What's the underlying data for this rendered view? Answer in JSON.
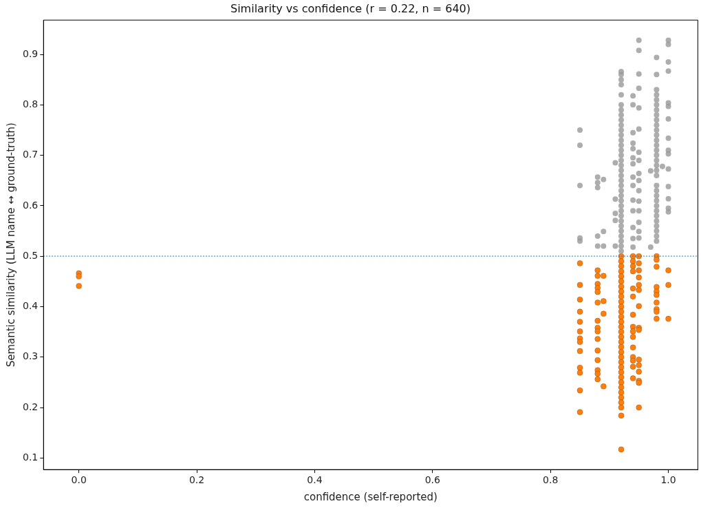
{
  "chart_data": {
    "type": "scatter",
    "title": "Similarity vs confidence (r = 0.22, n = 640)",
    "xlabel": "confidence (self-reported)",
    "ylabel": "Semantic similarity (LLM name ↔ ground-truth)",
    "xlim": [
      -0.06,
      1.05
    ],
    "ylim": [
      0.077,
      0.968
    ],
    "xticks": [
      {
        "value": 0,
        "label": "0.0"
      },
      {
        "value": 0.2,
        "label": "0.2"
      },
      {
        "value": 0.4,
        "label": "0.4"
      },
      {
        "value": 0.6,
        "label": "0.6"
      },
      {
        "value": 0.8,
        "label": "0.8"
      },
      {
        "value": 1,
        "label": "1.0"
      }
    ],
    "yticks": [
      0.1,
      0.2,
      0.3,
      0.4,
      0.5,
      0.6,
      0.7,
      0.8,
      0.9
    ],
    "grid": false,
    "legend": false,
    "marker": "circle",
    "ref_lines": [
      {
        "axis": "y",
        "value": 0.5,
        "color": "#1f77b4",
        "line_style": "dotted"
      }
    ],
    "series": [
      {
        "color": "#999999",
        "x": [
          0.85,
          0.85,
          0.85,
          0.85,
          0.85,
          0.88,
          0.88,
          0.88,
          0.88,
          0.88,
          0.89,
          0.89,
          0.89,
          0.91,
          0.91,
          0.91,
          0.91,
          0.91,
          0.92,
          0.92,
          0.92,
          0.92,
          0.92,
          0.92,
          0.92,
          0.92,
          0.92,
          0.92,
          0.92,
          0.92,
          0.92,
          0.92,
          0.92,
          0.92,
          0.92,
          0.92,
          0.92,
          0.92,
          0.92,
          0.92,
          0.92,
          0.92,
          0.92,
          0.92,
          0.92,
          0.92,
          0.92,
          0.92,
          0.92,
          0.92,
          0.92,
          0.92,
          0.92,
          0.94,
          0.94,
          0.94,
          0.94,
          0.94,
          0.94,
          0.94,
          0.94,
          0.94,
          0.94,
          0.94,
          0.94,
          0.94,
          0.94,
          0.95,
          0.95,
          0.95,
          0.95,
          0.95,
          0.95,
          0.95,
          0.95,
          0.95,
          0.95,
          0.95,
          0.95,
          0.95,
          0.95,
          0.95,
          0.95,
          0.97,
          0.97,
          0.98,
          0.98,
          0.98,
          0.98,
          0.98,
          0.98,
          0.98,
          0.98,
          0.98,
          0.98,
          0.98,
          0.98,
          0.98,
          0.98,
          0.98,
          0.98,
          0.98,
          0.98,
          0.98,
          0.98,
          0.98,
          0.98,
          0.98,
          0.98,
          0.98,
          0.98,
          0.98,
          0.98,
          0.98,
          0.98,
          0.98,
          0.98,
          0.99,
          1,
          1,
          1,
          1,
          1,
          1,
          1,
          1,
          1,
          1,
          1,
          1,
          1,
          1,
          1
        ],
        "values": [
          0.75,
          0.72,
          0.64,
          0.536,
          0.53,
          0.657,
          0.646,
          0.636,
          0.54,
          0.52,
          0.652,
          0.549,
          0.52,
          0.685,
          0.613,
          0.585,
          0.571,
          0.52,
          0.866,
          0.86,
          0.85,
          0.84,
          0.82,
          0.8,
          0.79,
          0.78,
          0.77,
          0.76,
          0.75,
          0.74,
          0.73,
          0.72,
          0.71,
          0.7,
          0.69,
          0.68,
          0.67,
          0.66,
          0.65,
          0.64,
          0.63,
          0.62,
          0.61,
          0.6,
          0.59,
          0.58,
          0.57,
          0.56,
          0.55,
          0.54,
          0.53,
          0.52,
          0.51,
          0.818,
          0.8,
          0.745,
          0.724,
          0.713,
          0.695,
          0.683,
          0.657,
          0.64,
          0.611,
          0.59,
          0.557,
          0.535,
          0.518,
          0.928,
          0.908,
          0.861,
          0.833,
          0.794,
          0.752,
          0.706,
          0.69,
          0.664,
          0.65,
          0.63,
          0.609,
          0.59,
          0.567,
          0.549,
          0.536,
          0.669,
          0.518,
          0.894,
          0.86,
          0.83,
          0.82,
          0.81,
          0.8,
          0.79,
          0.78,
          0.77,
          0.76,
          0.75,
          0.74,
          0.73,
          0.72,
          0.71,
          0.7,
          0.69,
          0.68,
          0.67,
          0.66,
          0.64,
          0.63,
          0.62,
          0.61,
          0.6,
          0.59,
          0.58,
          0.57,
          0.56,
          0.55,
          0.54,
          0.53,
          0.678,
          0.928,
          0.92,
          0.885,
          0.867,
          0.804,
          0.797,
          0.772,
          0.734,
          0.71,
          0.703,
          0.673,
          0.638,
          0.614,
          0.595,
          0.588
        ]
      },
      {
        "color": "#ff7f0e",
        "x": [
          0,
          0,
          0,
          0.85,
          0.85,
          0.85,
          0.85,
          0.85,
          0.85,
          0.85,
          0.85,
          0.85,
          0.85,
          0.85,
          0.85,
          0.85,
          0.88,
          0.88,
          0.88,
          0.88,
          0.88,
          0.88,
          0.88,
          0.88,
          0.88,
          0.88,
          0.88,
          0.88,
          0.88,
          0.88,
          0.88,
          0.89,
          0.89,
          0.89,
          0.89,
          0.92,
          0.92,
          0.92,
          0.92,
          0.92,
          0.92,
          0.92,
          0.92,
          0.92,
          0.92,
          0.92,
          0.92,
          0.92,
          0.92,
          0.92,
          0.92,
          0.92,
          0.92,
          0.92,
          0.92,
          0.92,
          0.92,
          0.92,
          0.92,
          0.92,
          0.92,
          0.92,
          0.92,
          0.92,
          0.92,
          0.92,
          0.92,
          0.92,
          0.94,
          0.94,
          0.94,
          0.94,
          0.94,
          0.94,
          0.94,
          0.94,
          0.94,
          0.94,
          0.94,
          0.94,
          0.94,
          0.94,
          0.94,
          0.95,
          0.95,
          0.95,
          0.95,
          0.95,
          0.95,
          0.95,
          0.95,
          0.95,
          0.95,
          0.95,
          0.95,
          0.95,
          0.95,
          0.95,
          0.98,
          0.98,
          0.98,
          0.98,
          0.98,
          0.98,
          0.98,
          0.98,
          0.98,
          0.98,
          1,
          1,
          1
        ],
        "values": [
          0.466,
          0.46,
          0.441,
          0.486,
          0.443,
          0.414,
          0.39,
          0.37,
          0.351,
          0.337,
          0.33,
          0.312,
          0.279,
          0.269,
          0.234,
          0.191,
          0.472,
          0.461,
          0.445,
          0.437,
          0.429,
          0.408,
          0.372,
          0.358,
          0.351,
          0.336,
          0.313,
          0.294,
          0.274,
          0.267,
          0.256,
          0.461,
          0.411,
          0.386,
          0.242,
          0.5,
          0.49,
          0.48,
          0.47,
          0.46,
          0.45,
          0.44,
          0.43,
          0.42,
          0.41,
          0.4,
          0.39,
          0.38,
          0.37,
          0.36,
          0.35,
          0.34,
          0.33,
          0.32,
          0.31,
          0.3,
          0.29,
          0.28,
          0.27,
          0.26,
          0.25,
          0.24,
          0.23,
          0.22,
          0.21,
          0.2,
          0.184,
          0.117,
          0.5,
          0.49,
          0.48,
          0.47,
          0.436,
          0.42,
          0.384,
          0.36,
          0.351,
          0.34,
          0.319,
          0.3,
          0.293,
          0.281,
          0.258,
          0.5,
          0.486,
          0.472,
          0.458,
          0.443,
          0.433,
          0.401,
          0.358,
          0.354,
          0.295,
          0.284,
          0.271,
          0.253,
          0.249,
          0.2,
          0.5,
          0.493,
          0.479,
          0.439,
          0.43,
          0.423,
          0.408,
          0.395,
          0.39,
          0.376,
          0.472,
          0.443,
          0.376
        ]
      }
    ]
  }
}
